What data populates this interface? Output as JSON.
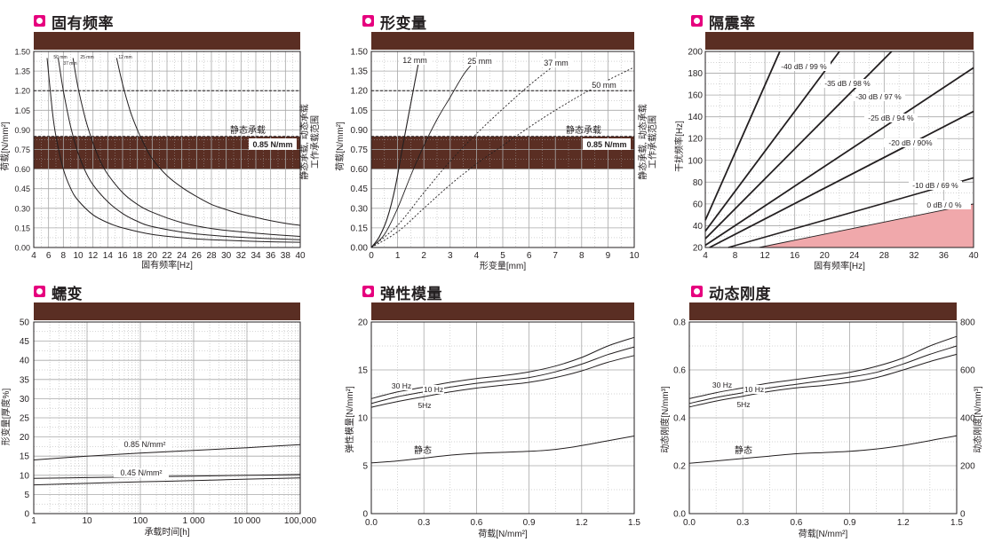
{
  "panels": [
    {
      "title": "固有频率"
    },
    {
      "title": "形变量"
    },
    {
      "title": "隔震率"
    },
    {
      "title": "蠕变"
    },
    {
      "title": "弹性模量"
    },
    {
      "title": "动态刚度"
    }
  ],
  "colors": {
    "header_bar": "#5a2e23",
    "band": "#5a2e23",
    "grid": "#a8a8a8",
    "curve": "#231f20",
    "pink_area": "#f0a8ab",
    "accent_mark": "#e6007e"
  },
  "chart_data": [
    {
      "type": "line",
      "title": "固有频率",
      "xlabel": "固有频率[Hz]",
      "ylabel": "荷载[N/mm²]",
      "right_label_1": "静态承载, 动态承载",
      "right_label_2": "工作承载范围",
      "xlim": [
        4,
        40
      ],
      "ylim": [
        0,
        1.5
      ],
      "xticks": [
        "4",
        "6",
        "8",
        "10",
        "12",
        "14",
        "16",
        "18",
        "20",
        "22",
        "24",
        "26",
        "28",
        "30",
        "32",
        "34",
        "36",
        "38",
        "40"
      ],
      "yticks": [
        "0.00",
        "0.15",
        "0.30",
        "0.45",
        "0.60",
        "0.75",
        "0.90",
        "1.05",
        "1.20",
        "1.35",
        "1.50"
      ],
      "band": [
        0.6,
        0.85
      ],
      "dashed_lines": [
        1.2,
        0.85
      ],
      "static_label": "静态承载",
      "band_label": "0.85 N/mm",
      "series": [
        {
          "name": "50 mm",
          "x": [
            5.8,
            6.5,
            7,
            8,
            9,
            10,
            12,
            14,
            16,
            20,
            25,
            30,
            35,
            40
          ],
          "values": [
            1.45,
            1.05,
            0.85,
            0.6,
            0.45,
            0.36,
            0.25,
            0.19,
            0.15,
            0.1,
            0.07,
            0.055,
            0.045,
            0.04
          ]
        },
        {
          "name": "37 mm",
          "x": [
            7.3,
            8,
            9,
            10,
            11,
            12,
            14,
            16,
            18,
            20,
            25,
            30,
            35,
            40
          ],
          "values": [
            1.45,
            1.2,
            0.92,
            0.72,
            0.58,
            0.48,
            0.35,
            0.26,
            0.2,
            0.16,
            0.11,
            0.085,
            0.07,
            0.06
          ]
        },
        {
          "name": "25 mm",
          "x": [
            9.3,
            10,
            11,
            12,
            13,
            14,
            16,
            18,
            20,
            24,
            28,
            32,
            36,
            40
          ],
          "values": [
            1.45,
            1.22,
            0.98,
            0.8,
            0.66,
            0.56,
            0.42,
            0.33,
            0.27,
            0.19,
            0.145,
            0.12,
            0.1,
            0.085
          ]
        },
        {
          "name": "12 mm",
          "x": [
            15.2,
            16,
            17,
            18,
            19,
            20,
            22,
            24,
            26,
            28,
            30,
            32,
            34,
            36,
            38,
            40
          ],
          "values": [
            1.45,
            1.25,
            1.05,
            0.9,
            0.78,
            0.68,
            0.55,
            0.46,
            0.39,
            0.33,
            0.29,
            0.255,
            0.23,
            0.205,
            0.185,
            0.17
          ]
        }
      ]
    },
    {
      "type": "line",
      "title": "形变量",
      "xlabel": "形变量[mm]",
      "ylabel": "荷载[N/mm²]",
      "right_label_1": "静态承载, 动态承载",
      "right_label_2": "工作承载范围",
      "xlim": [
        0,
        10
      ],
      "ylim": [
        0,
        1.5
      ],
      "xticks": [
        "0",
        "1",
        "2",
        "3",
        "4",
        "5",
        "6",
        "7",
        "8",
        "9",
        "10"
      ],
      "yticks": [
        "0.00",
        "0.15",
        "0.30",
        "0.45",
        "0.60",
        "0.75",
        "0.90",
        "1.05",
        "1.20",
        "1.35",
        "1.50"
      ],
      "band": [
        0.6,
        0.85
      ],
      "dashed_lines": [
        1.2,
        0.85
      ],
      "static_label": "静态承载",
      "band_label": "0.85 N/mm",
      "series": [
        {
          "name": "12 mm",
          "x": [
            0,
            0.3,
            0.6,
            0.9,
            1.2,
            1.5,
            1.8
          ],
          "values": [
            0,
            0.08,
            0.22,
            0.45,
            0.78,
            1.1,
            1.42
          ]
        },
        {
          "name": "25 mm",
          "x": [
            0,
            0.5,
            1,
            1.5,
            2,
            2.5,
            3,
            3.5,
            3.9
          ],
          "values": [
            0,
            0.1,
            0.3,
            0.55,
            0.78,
            0.98,
            1.15,
            1.32,
            1.42
          ]
        },
        {
          "name": "37 mm",
          "x": [
            0,
            1,
            2,
            3,
            4,
            5,
            6,
            7
          ],
          "values": [
            0,
            0.17,
            0.42,
            0.66,
            0.87,
            1.06,
            1.24,
            1.4
          ]
        },
        {
          "name": "50 mm",
          "x": [
            0,
            1,
            2,
            3,
            4,
            5,
            6,
            7,
            8,
            9,
            10
          ],
          "values": [
            0,
            0.12,
            0.3,
            0.48,
            0.64,
            0.78,
            0.92,
            1.05,
            1.17,
            1.28,
            1.38
          ]
        }
      ]
    },
    {
      "type": "line",
      "title": "隔震率",
      "xlabel": "固有频率[Hz]",
      "ylabel": "干扰频率[Hz]",
      "xlim": [
        4,
        40
      ],
      "ylim": [
        20,
        200
      ],
      "xticks": [
        "4",
        "8",
        "12",
        "16",
        "20",
        "24",
        "28",
        "32",
        "36",
        "40"
      ],
      "yticks": [
        "20",
        "40",
        "60",
        "80",
        "100",
        "120",
        "140",
        "160",
        "180",
        "200"
      ],
      "series": [
        {
          "name": "-40 dB / 99 %",
          "x": [
            4,
            14
          ],
          "values": [
            45,
            200
          ]
        },
        {
          "name": "-35 dB / 98 %",
          "x": [
            4,
            22
          ],
          "values": [
            35,
            200
          ]
        },
        {
          "name": "-30 dB / 97 %",
          "x": [
            4,
            29
          ],
          "values": [
            28,
            200
          ]
        },
        {
          "name": "-25 dB / 94 %",
          "x": [
            4,
            40
          ],
          "values": [
            22,
            185
          ]
        },
        {
          "name": "-20 dB / 90%",
          "x": [
            4,
            40
          ],
          "values": [
            18,
            145
          ]
        },
        {
          "name": "-10 dB / 69 %",
          "x": [
            4,
            40
          ],
          "values": [
            14,
            84
          ]
        },
        {
          "name": "0 dB / 0 %",
          "x": [
            4,
            40
          ],
          "values": [
            10,
            60
          ]
        }
      ]
    },
    {
      "type": "line",
      "title": "蠕变",
      "xlabel": "承载时间[h]",
      "ylabel": "形变量[厚度%]",
      "xscale": "log",
      "xlim": [
        1,
        100000
      ],
      "ylim": [
        0,
        50
      ],
      "xticks": [
        "1",
        "10",
        "100",
        "1 000",
        "10 000",
        "100,000"
      ],
      "yticks": [
        "0",
        "5",
        "10",
        "15",
        "20",
        "25",
        "30",
        "35",
        "40",
        "45",
        "50"
      ],
      "series": [
        {
          "name": "0.85 N/mm²",
          "x": [
            1,
            10,
            100,
            1000,
            10000,
            100000
          ],
          "values": [
            14,
            15,
            15.8,
            16.5,
            17.2,
            18
          ]
        },
        {
          "name": "",
          "x": [
            1,
            10,
            100,
            1000,
            10000,
            100000
          ],
          "values": [
            9.2,
            9.4,
            9.6,
            9.8,
            10,
            10.2
          ]
        },
        {
          "name": "0.45 N/mm²",
          "x": [
            1,
            10,
            100,
            1000,
            10000,
            100000
          ],
          "values": [
            7.5,
            7.9,
            8.3,
            8.6,
            9,
            9.3
          ]
        }
      ]
    },
    {
      "type": "line",
      "title": "弹性模量",
      "xlabel": "荷载[N/mm²]",
      "ylabel": "弹性模量[N/mm²]",
      "xlim": [
        0,
        1.5
      ],
      "ylim": [
        0,
        20
      ],
      "xticks": [
        "0.0",
        "0.3",
        "0.6",
        "0.9",
        "1.2",
        "1.5"
      ],
      "yticks": [
        "0",
        "5",
        "10",
        "15",
        "20"
      ],
      "series": [
        {
          "name": "30 Hz",
          "x": [
            0,
            0.15,
            0.3,
            0.45,
            0.6,
            0.75,
            0.9,
            1.05,
            1.2,
            1.35,
            1.5
          ],
          "values": [
            12,
            12.7,
            13.2,
            13.7,
            14.1,
            14.4,
            14.8,
            15.4,
            16.3,
            17.5,
            18.4
          ]
        },
        {
          "name": "10 Hz",
          "x": [
            0,
            0.15,
            0.3,
            0.45,
            0.6,
            0.75,
            0.9,
            1.05,
            1.2,
            1.35,
            1.5
          ],
          "values": [
            11.5,
            12.2,
            12.7,
            13.2,
            13.6,
            13.9,
            14.2,
            14.8,
            15.6,
            16.6,
            17.4
          ]
        },
        {
          "name": "5Hz",
          "x": [
            0,
            0.15,
            0.3,
            0.45,
            0.6,
            0.75,
            0.9,
            1.05,
            1.2,
            1.35,
            1.5
          ],
          "values": [
            11.1,
            11.7,
            12.2,
            12.7,
            13.1,
            13.4,
            13.7,
            14.2,
            14.9,
            15.8,
            16.5
          ]
        },
        {
          "name": "静态",
          "x": [
            0,
            0.15,
            0.3,
            0.45,
            0.6,
            0.75,
            0.9,
            1.05,
            1.2,
            1.35,
            1.5
          ],
          "values": [
            5.3,
            5.5,
            5.8,
            6.1,
            6.3,
            6.4,
            6.5,
            6.7,
            7.1,
            7.6,
            8.1
          ]
        }
      ]
    },
    {
      "type": "line",
      "title": "动态刚度",
      "xlabel": "荷载[N/mm²]",
      "ylabel": "动态刚度[N/mm³]",
      "y2label": "动态刚度[N/mm³]",
      "xlim": [
        0,
        1.5
      ],
      "ylim": [
        0,
        0.8
      ],
      "y2lim": [
        0,
        800
      ],
      "xticks": [
        "0.0",
        "0.3",
        "0.6",
        "0.9",
        "1.2",
        "1.5"
      ],
      "yticks": [
        "0.0",
        "0.2",
        "0.4",
        "0.6",
        "0.8"
      ],
      "y2ticks": [
        "0",
        "200",
        "400",
        "600",
        "800"
      ],
      "series": [
        {
          "name": "30 Hz",
          "x": [
            0,
            0.15,
            0.3,
            0.45,
            0.6,
            0.75,
            0.9,
            1.05,
            1.2,
            1.35,
            1.5
          ],
          "values": [
            0.48,
            0.505,
            0.525,
            0.545,
            0.56,
            0.575,
            0.59,
            0.615,
            0.65,
            0.7,
            0.74
          ]
        },
        {
          "name": "10 Hz",
          "x": [
            0,
            0.15,
            0.3,
            0.45,
            0.6,
            0.75,
            0.9,
            1.05,
            1.2,
            1.35,
            1.5
          ],
          "values": [
            0.46,
            0.485,
            0.505,
            0.525,
            0.54,
            0.555,
            0.57,
            0.59,
            0.625,
            0.665,
            0.7
          ]
        },
        {
          "name": "5Hz",
          "x": [
            0,
            0.15,
            0.3,
            0.45,
            0.6,
            0.75,
            0.9,
            1.05,
            1.2,
            1.35,
            1.5
          ],
          "values": [
            0.445,
            0.47,
            0.49,
            0.51,
            0.525,
            0.535,
            0.548,
            0.568,
            0.6,
            0.635,
            0.665
          ]
        },
        {
          "name": "静态",
          "x": [
            0,
            0.15,
            0.3,
            0.45,
            0.6,
            0.75,
            0.9,
            1.05,
            1.2,
            1.35,
            1.5
          ],
          "values": [
            0.21,
            0.22,
            0.23,
            0.24,
            0.25,
            0.255,
            0.26,
            0.27,
            0.285,
            0.305,
            0.325
          ]
        }
      ]
    }
  ]
}
